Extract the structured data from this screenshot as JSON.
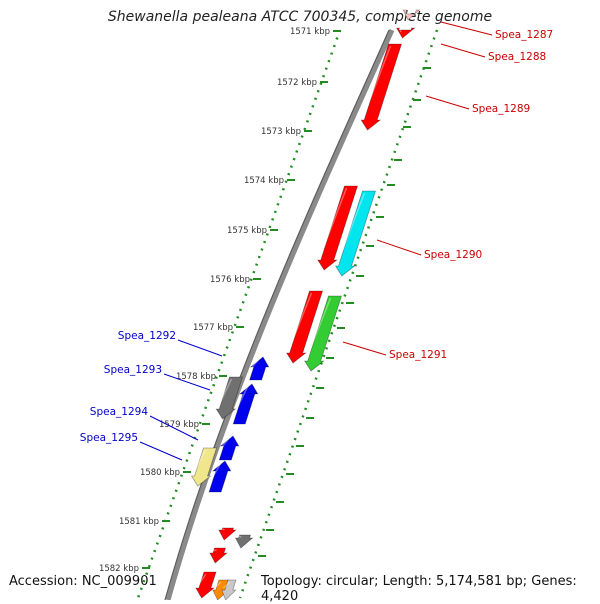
{
  "title": "Shewanella pealeana ATCC 700345, complete genome",
  "footer": {
    "accession": "Accession: NC_009901",
    "summary": "Topology: circular; Length: 5,174,581 bp; Genes: 4,420"
  },
  "kbp_ticks": [
    "1571 kbp",
    "1572 kbp",
    "1573 kbp",
    "1574 kbp",
    "1575 kbp",
    "1576 kbp",
    "1577 kbp",
    "1578 kbp",
    "1579 kbp",
    "1580 kbp",
    "1581 kbp",
    "1582 kbp"
  ],
  "right_labels": [
    {
      "text": "Spea_1287",
      "color": "#cc0000"
    },
    {
      "text": "Spea_1288",
      "color": "#cc0000"
    },
    {
      "text": "Spea_1289",
      "color": "#cc0000"
    },
    {
      "text": "Spea_1290",
      "color": "#cc0000"
    },
    {
      "text": "Spea_1291",
      "color": "#cc0000"
    }
  ],
  "left_labels": [
    {
      "text": "Spea_1292",
      "color": "#0000cc"
    },
    {
      "text": "Spea_1293",
      "color": "#0000cc"
    },
    {
      "text": "Spea_1294",
      "color": "#0000cc"
    },
    {
      "text": "Spea_1295",
      "color": "#0000cc"
    }
  ],
  "colors": {
    "backbone": "#808080",
    "ruler": "#228b22",
    "forward": "#ff0000",
    "reverse": "#0000ee",
    "cyan": "#00e5ee",
    "green": "#33cc33",
    "gray": "#707070",
    "khaki": "#f0e68c",
    "orange": "#ff8c00",
    "pink": "#ffc0c0"
  }
}
